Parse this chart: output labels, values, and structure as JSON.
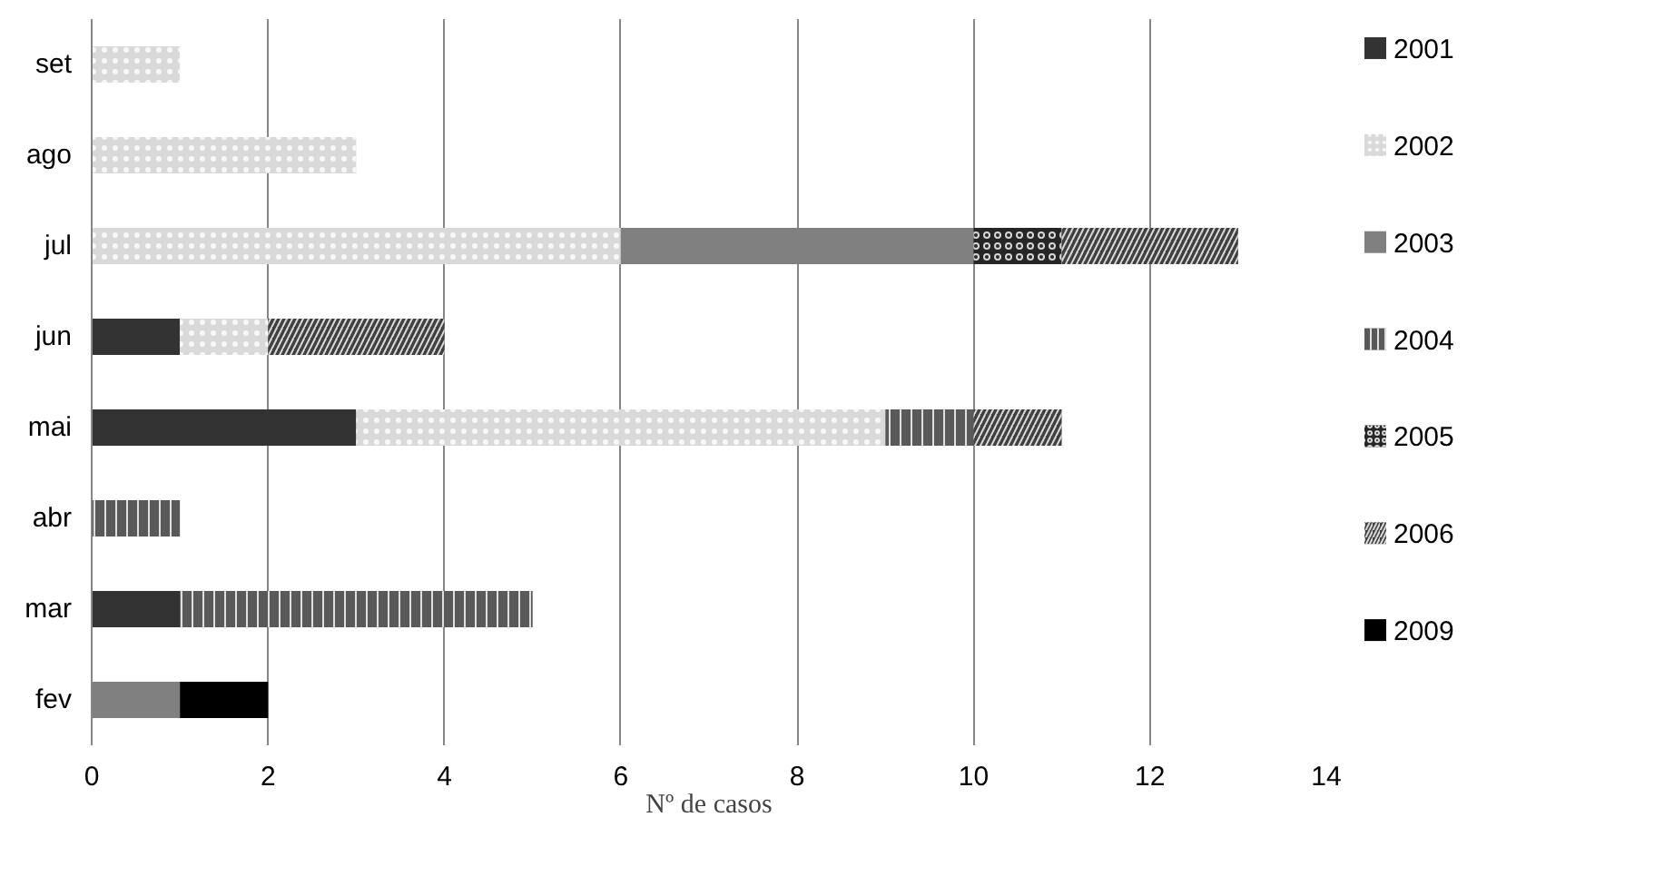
{
  "chart_data": {
    "type": "bar",
    "orientation": "horizontal",
    "stacked": true,
    "xlabel": "Nº de casos",
    "categories": [
      "set",
      "ago",
      "jul",
      "jun",
      "mai",
      "abr",
      "mar",
      "fev"
    ],
    "series": [
      {
        "name": "2001",
        "color": "#333333",
        "values": [
          0,
          0,
          0,
          1,
          3,
          0,
          1,
          0
        ]
      },
      {
        "name": "2002",
        "color": "#d9d9d9",
        "values": [
          1,
          3,
          6,
          1,
          6,
          0,
          0,
          0
        ]
      },
      {
        "name": "2003",
        "color": "#808080",
        "values": [
          0,
          0,
          4,
          0,
          0,
          0,
          0,
          1
        ]
      },
      {
        "name": "2004",
        "color": "#595959",
        "values": [
          0,
          0,
          0,
          0,
          1,
          1,
          4,
          0
        ]
      },
      {
        "name": "2005",
        "color": "#262626",
        "values": [
          0,
          0,
          1,
          0,
          0,
          0,
          0,
          0
        ]
      },
      {
        "name": "2006",
        "color": "#404040",
        "values": [
          0,
          0,
          2,
          2,
          1,
          0,
          0,
          0
        ]
      },
      {
        "name": "2009",
        "color": "#000000",
        "values": [
          0,
          0,
          0,
          0,
          0,
          0,
          0,
          1
        ]
      }
    ],
    "xlim": [
      0,
      14
    ],
    "xticks": [
      0,
      2,
      4,
      6,
      8,
      10,
      12,
      14
    ],
    "grid": "x",
    "legend": "right"
  }
}
